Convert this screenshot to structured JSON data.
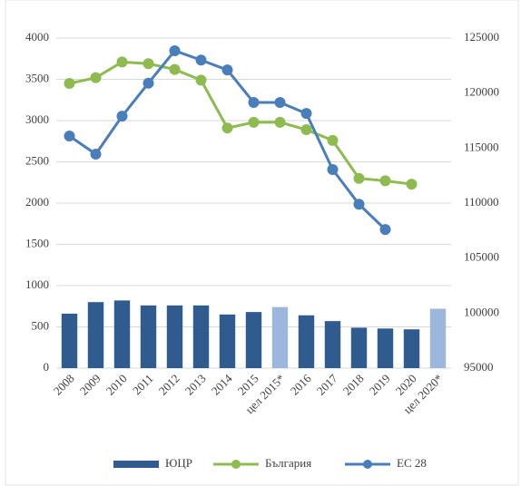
{
  "chart_data": {
    "type": "combo",
    "categories": [
      "2008",
      "2009",
      "2010",
      "2011",
      "2012",
      "2013",
      "2014",
      "2015",
      "цел 2015*",
      "2016",
      "2017",
      "2018",
      "2019",
      "2020",
      "цел 2020*"
    ],
    "ylim": [
      0,
      4000
    ],
    "yticks": [
      0,
      500,
      1000,
      1500,
      2000,
      2500,
      3000,
      3500,
      4000
    ],
    "y2lim": [
      95000,
      125000
    ],
    "y2ticks": [
      95000,
      100000,
      105000,
      110000,
      115000,
      120000,
      125000
    ],
    "grid": true,
    "legend": "bottom",
    "series": [
      {
        "name": "ЮЦР",
        "type": "bar",
        "color": "#2f5b8f",
        "point_colors": [
          "#2f5b8f",
          "#2f5b8f",
          "#2f5b8f",
          "#2f5b8f",
          "#2f5b8f",
          "#2f5b8f",
          "#2f5b8f",
          "#2f5b8f",
          "#9db7dc",
          "#2f5b8f",
          "#2f5b8f",
          "#2f5b8f",
          "#2f5b8f",
          "#2f5b8f",
          "#9db7dc"
        ],
        "values": [
          660,
          800,
          820,
          760,
          760,
          760,
          650,
          680,
          740,
          640,
          570,
          490,
          480,
          470,
          720
        ]
      },
      {
        "name": "България",
        "type": "line",
        "color": "#8dbb4f",
        "values": [
          3450,
          3520,
          3710,
          3690,
          3620,
          3490,
          2910,
          2980,
          2980,
          2890,
          2760,
          2300,
          2270,
          2230,
          null
        ]
      },
      {
        "name": "ЕС 28",
        "type": "line",
        "color": "#4a7ebb",
        "axis": "y2",
        "values": [
          116100,
          114450,
          117900,
          120900,
          123850,
          123000,
          122100,
          119150,
          119150,
          118150,
          113050,
          109900,
          107600,
          null,
          null
        ]
      }
    ]
  }
}
